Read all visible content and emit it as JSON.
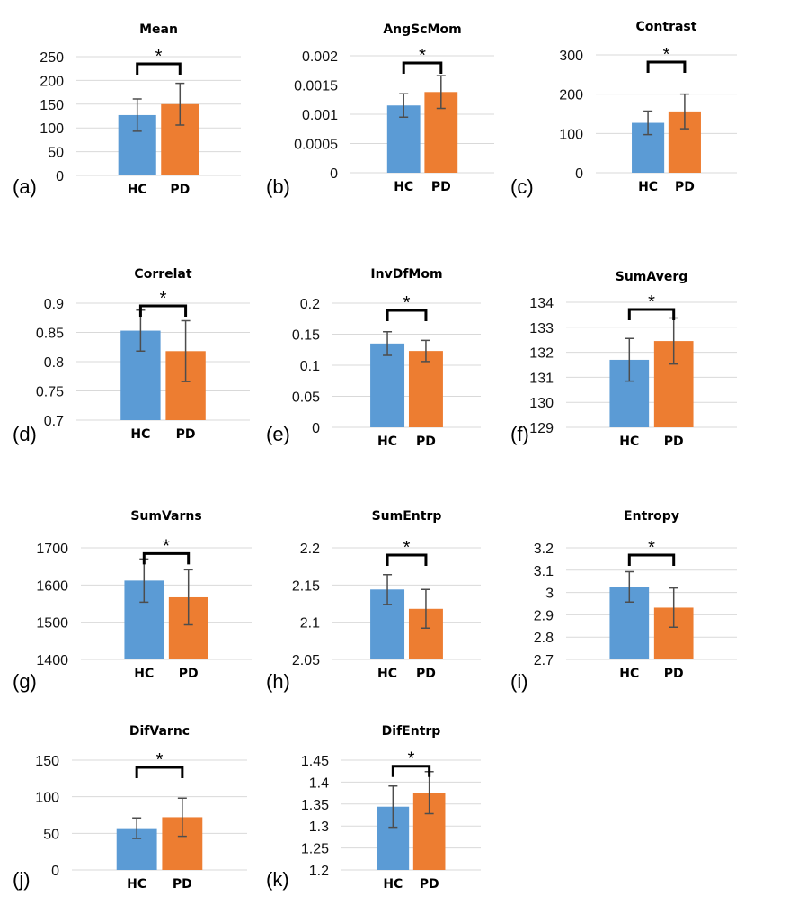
{
  "figure": {
    "description": "Texture feature comparison HC vs PD"
  },
  "colors": {
    "hc": "#5b9bd5",
    "pd": "#ed7d31"
  },
  "chart_data": [
    {
      "id": "a",
      "panel_label": "(a)",
      "type": "bar",
      "title": "Mean",
      "categories": [
        "HC",
        "PD"
      ],
      "values": [
        127,
        150
      ],
      "errors": [
        34,
        44
      ],
      "ylim": [
        0,
        250
      ],
      "yticks": [
        0,
        50,
        100,
        150,
        200,
        250
      ],
      "ytick_labels": [
        "0",
        "50",
        "100",
        "150",
        "200",
        "250"
      ],
      "significance": "*"
    },
    {
      "id": "b",
      "panel_label": "(b)",
      "type": "bar",
      "title": "AngScMom",
      "categories": [
        "HC",
        "PD"
      ],
      "values": [
        0.00115,
        0.00138
      ],
      "errors": [
        0.0002,
        0.00028
      ],
      "ylim": [
        0,
        0.002
      ],
      "yticks": [
        0,
        0.0005,
        0.001,
        0.0015,
        0.002
      ],
      "ytick_labels": [
        "0",
        "0.0005",
        "0.001",
        "0.0015",
        "0.002"
      ],
      "significance": "*"
    },
    {
      "id": "c",
      "panel_label": "(c)",
      "type": "bar",
      "title": "Contrast",
      "categories": [
        "HC",
        "PD"
      ],
      "values": [
        127,
        156
      ],
      "errors": [
        30,
        44
      ],
      "ylim": [
        0,
        300
      ],
      "yticks": [
        0,
        100,
        200,
        300
      ],
      "ytick_labels": [
        "0",
        "100",
        "200",
        "300"
      ],
      "significance": "*"
    },
    {
      "id": "d",
      "panel_label": "(d)",
      "type": "bar",
      "title": "Correlat",
      "categories": [
        "HC",
        "PD"
      ],
      "values": [
        0.853,
        0.818
      ],
      "errors": [
        0.035,
        0.052
      ],
      "ylim": [
        0.7,
        0.9
      ],
      "yticks": [
        0.7,
        0.75,
        0.8,
        0.85,
        0.9
      ],
      "ytick_labels": [
        "0.7",
        "0.75",
        "0.8",
        "0.85",
        "0.9"
      ],
      "significance": "*"
    },
    {
      "id": "e",
      "panel_label": "(e)",
      "type": "bar",
      "title": "InvDfMom",
      "categories": [
        "HC",
        "PD"
      ],
      "values": [
        0.135,
        0.123
      ],
      "errors": [
        0.019,
        0.017
      ],
      "ylim": [
        0,
        0.2
      ],
      "yticks": [
        0,
        0.05,
        0.1,
        0.15,
        0.2
      ],
      "ytick_labels": [
        "0",
        "0.05",
        "0.1",
        "0.15",
        "0.2"
      ],
      "significance": "*"
    },
    {
      "id": "f",
      "panel_label": "(f)",
      "type": "bar",
      "title": "SumAverg",
      "categories": [
        "HC",
        "PD"
      ],
      "values": [
        131.7,
        132.45
      ],
      "errors": [
        0.85,
        0.92
      ],
      "ylim": [
        129,
        134
      ],
      "yticks": [
        129,
        130,
        131,
        132,
        133,
        134
      ],
      "ytick_labels": [
        "129",
        "130",
        "131",
        "132",
        "133",
        "134"
      ],
      "significance": "*"
    },
    {
      "id": "g",
      "panel_label": "(g)",
      "type": "bar",
      "title": "SumVarns",
      "categories": [
        "HC",
        "PD"
      ],
      "values": [
        1612,
        1567
      ],
      "errors": [
        58,
        74
      ],
      "ylim": [
        1400,
        1700
      ],
      "yticks": [
        1400,
        1500,
        1600,
        1700
      ],
      "ytick_labels": [
        "1400",
        "1500",
        "1600",
        "1700"
      ],
      "significance": "*"
    },
    {
      "id": "h",
      "panel_label": "(h)",
      "type": "bar",
      "title": "SumEntrp",
      "categories": [
        "HC",
        "PD"
      ],
      "values": [
        2.144,
        2.118
      ],
      "errors": [
        0.02,
        0.026
      ],
      "ylim": [
        2.05,
        2.2
      ],
      "yticks": [
        2.05,
        2.1,
        2.15,
        2.2
      ],
      "ytick_labels": [
        "2.05",
        "2.1",
        "2.15",
        "2.2"
      ],
      "significance": "*"
    },
    {
      "id": "i",
      "panel_label": "(i)",
      "type": "bar",
      "title": "Entropy",
      "categories": [
        "HC",
        "PD"
      ],
      "values": [
        3.025,
        2.932
      ],
      "errors": [
        0.068,
        0.088
      ],
      "ylim": [
        2.7,
        3.2
      ],
      "yticks": [
        2.7,
        2.8,
        2.9,
        3.0,
        3.1,
        3.2
      ],
      "ytick_labels": [
        "2.7",
        "2.8",
        "2.9",
        "3",
        "3.1",
        "3.2"
      ],
      "significance": "*"
    },
    {
      "id": "j",
      "panel_label": "(j)",
      "type": "bar",
      "title": "DifVarnc",
      "categories": [
        "HC",
        "PD"
      ],
      "values": [
        57,
        72
      ],
      "errors": [
        14,
        26
      ],
      "ylim": [
        0,
        150
      ],
      "yticks": [
        0,
        50,
        100,
        150
      ],
      "ytick_labels": [
        "0",
        "50",
        "100",
        "150"
      ],
      "significance": "*"
    },
    {
      "id": "k",
      "panel_label": "(k)",
      "type": "bar",
      "title": "DifEntrp",
      "categories": [
        "HC",
        "PD"
      ],
      "values": [
        1.344,
        1.376
      ],
      "errors": [
        0.047,
        0.048
      ],
      "ylim": [
        1.2,
        1.45
      ],
      "yticks": [
        1.2,
        1.25,
        1.3,
        1.35,
        1.4,
        1.45
      ],
      "ytick_labels": [
        "1.2",
        "1.25",
        "1.3",
        "1.35",
        "1.4",
        "1.45"
      ],
      "significance": "*"
    }
  ]
}
